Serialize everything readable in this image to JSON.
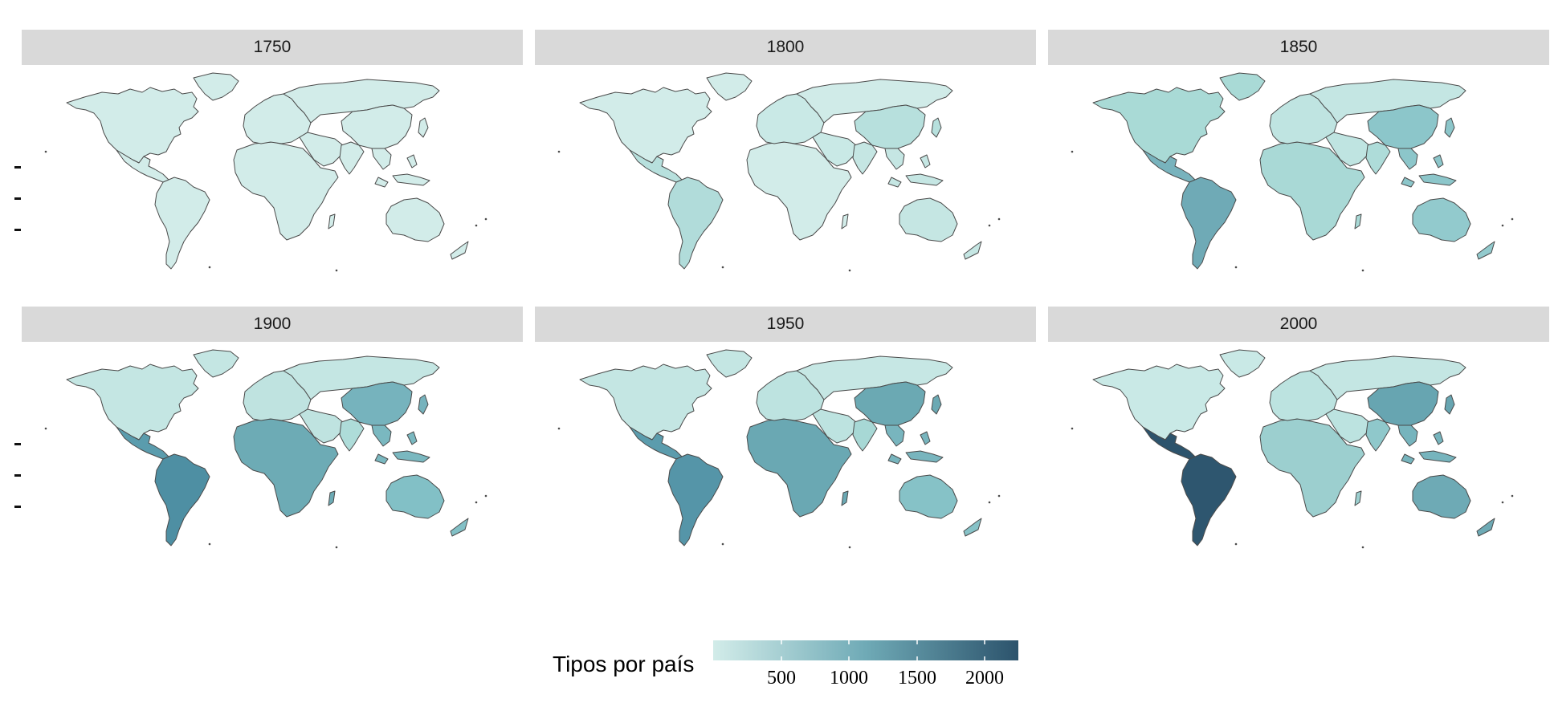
{
  "panels": [
    {
      "year": "1750",
      "fills": {
        "northAmerica": "#d2ece9",
        "mexico": "#d2ece9",
        "southAmerica": "#d2ece9",
        "africa": "#d2ece9",
        "europe": "#d2ece9",
        "russia": "#d2ece9",
        "china": "#d2ece9",
        "india": "#d2ece9",
        "seAsia": "#d2ece9",
        "australia": "#d2ece9"
      }
    },
    {
      "year": "1800",
      "fills": {
        "northAmerica": "#d2ece9",
        "mexico": "#b7e0dd",
        "southAmerica": "#b1dcda",
        "africa": "#d2ece9",
        "europe": "#c9e9e6",
        "russia": "#d0ebe8",
        "china": "#b7e0dd",
        "india": "#c5e6e3",
        "seAsia": "#c5e6e3",
        "australia": "#c5e6e3"
      }
    },
    {
      "year": "1850",
      "fills": {
        "northAmerica": "#a9dad6",
        "mexico": "#78b3bd",
        "southAmerica": "#6faab6",
        "africa": "#a9d9d6",
        "europe": "#bfe4e1",
        "russia": "#c4e6e3",
        "china": "#8cc6ca",
        "india": "#aedcd9",
        "seAsia": "#8cc6ca",
        "australia": "#92cacd"
      }
    },
    {
      "year": "1900",
      "fills": {
        "northAmerica": "#c4e6e3",
        "mexico": "#5a9cad",
        "southAmerica": "#4e8fa3",
        "africa": "#6dabb5",
        "europe": "#bfe3e0",
        "russia": "#c4e6e3",
        "china": "#76b3bd",
        "india": "#aedcd9",
        "seAsia": "#7ab8c0",
        "australia": "#82c0c6"
      }
    },
    {
      "year": "1950",
      "fills": {
        "northAmerica": "#c4e6e3",
        "mexico": "#5b9cad",
        "southAmerica": "#5595a8",
        "africa": "#6aa8b3",
        "europe": "#bde3e0",
        "russia": "#c6e7e4",
        "china": "#6ba9b3",
        "india": "#a7d8d5",
        "seAsia": "#78b5be",
        "australia": "#86c2c7"
      }
    },
    {
      "year": "2000",
      "fills": {
        "northAmerica": "#c9e9e6",
        "mexico": "#2c536c",
        "southAmerica": "#2e566f",
        "africa": "#9ccfcf",
        "europe": "#bce3e0",
        "russia": "#c4e6e3",
        "china": "#67a5b1",
        "india": "#8fc8cb",
        "seAsia": "#76b4bd",
        "australia": "#6eaab5"
      }
    }
  ],
  "legend": {
    "title": "Tipos por país",
    "labels": [
      "500",
      "1000",
      "1500",
      "2000"
    ],
    "low_color": "#d2ece9",
    "mid_color": "#6faab6",
    "high_color": "#2c536c"
  }
}
